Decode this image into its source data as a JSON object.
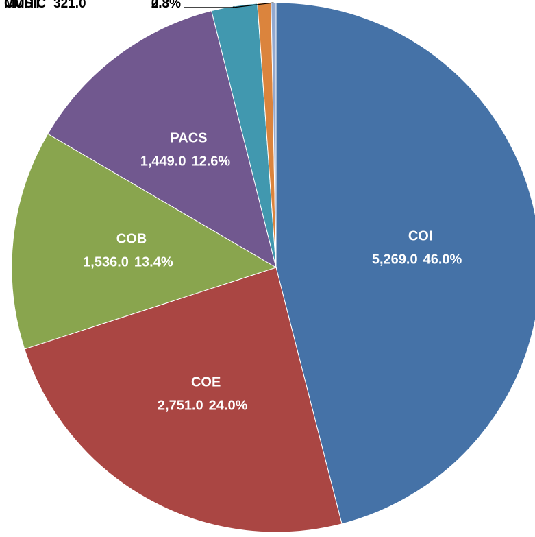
{
  "chart_data": {
    "type": "pie",
    "categories": [
      "COI",
      "COE",
      "COB",
      "PACS",
      "CMHT",
      null,
      "MUSIC"
    ],
    "values": [
      5269,
      2751,
      1536,
      1449,
      321,
      95,
      34
    ],
    "value_labels": [
      "5,269.0",
      "2,751.0",
      "1,536.0",
      "1,449.0",
      "321.0",
      null,
      null
    ],
    "percent_labels": [
      "46.0%",
      "24.0%",
      "13.4%",
      "12.6%",
      "2.8%",
      null,
      "0.3%"
    ],
    "colors": [
      "#4572a7",
      "#aa4643",
      "#89a54e",
      "#71588f",
      "#4198af",
      "#db843d",
      "#93a9cf"
    ]
  }
}
